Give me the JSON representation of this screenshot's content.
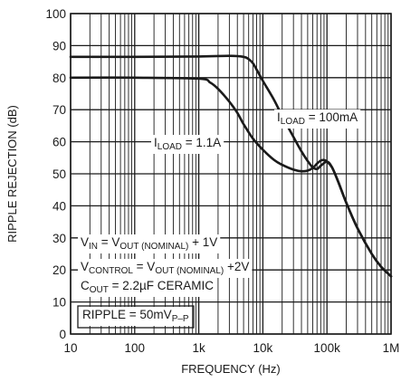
{
  "chart_data": {
    "type": "line",
    "xlabel": "FREQUENCY (Hz)",
    "ylabel": "RIPPLE REJECTION (dB)",
    "xscale": "log",
    "xlim": [
      10,
      1000000
    ],
    "ylim": [
      0,
      100
    ],
    "x_ticks": [
      {
        "value": 10,
        "label": "10"
      },
      {
        "value": 100,
        "label": "100"
      },
      {
        "value": 1000,
        "label": "1k"
      },
      {
        "value": 10000,
        "label": "10k"
      },
      {
        "value": 100000,
        "label": "100k"
      },
      {
        "value": 1000000,
        "label": "1M"
      }
    ],
    "y_ticks": [
      {
        "value": 0,
        "label": "0"
      },
      {
        "value": 10,
        "label": "10"
      },
      {
        "value": 20,
        "label": "20"
      },
      {
        "value": 30,
        "label": "30"
      },
      {
        "value": 40,
        "label": "40"
      },
      {
        "value": 50,
        "label": "50"
      },
      {
        "value": 60,
        "label": "60"
      },
      {
        "value": 70,
        "label": "70"
      },
      {
        "value": 80,
        "label": "80"
      },
      {
        "value": 90,
        "label": "90"
      },
      {
        "value": 100,
        "label": "100"
      }
    ],
    "grid": true,
    "series": [
      {
        "label_main": "I",
        "label_sub": "LOAD",
        "label_rest": " = 100mA",
        "x": [
          10,
          100,
          1000,
          3000,
          5000,
          6000,
          7000,
          8000,
          10000,
          15000,
          20000,
          30000,
          40000,
          50000,
          60000,
          70000,
          80000,
          100000,
          120000,
          150000,
          200000,
          300000,
          500000,
          700000,
          1000000
        ],
        "y": [
          86.5,
          86.5,
          86.6,
          86.8,
          86.5,
          85.8,
          84.5,
          82.5,
          79,
          73,
          68,
          61.5,
          57,
          54,
          52,
          51.5,
          52.5,
          53.8,
          52,
          47.5,
          41,
          33,
          25,
          21,
          18
        ]
      },
      {
        "label_main": "I",
        "label_sub": "LOAD",
        "label_rest": " = 1.1A",
        "x": [
          10,
          100,
          1000,
          1500,
          2000,
          3000,
          4000,
          5000,
          7000,
          10000,
          15000,
          20000,
          30000,
          40000,
          50000,
          60000,
          70000,
          80000,
          90000,
          100000,
          120000,
          150000,
          200000,
          300000,
          500000,
          700000,
          1000000
        ],
        "y": [
          80,
          80,
          79.7,
          78.5,
          76.5,
          72.5,
          69,
          65.5,
          61,
          57.5,
          54.3,
          52.8,
          51.3,
          50.8,
          51,
          51.8,
          53.2,
          54.1,
          54.3,
          53.8,
          52,
          47.5,
          41,
          33,
          25,
          21,
          18
        ]
      }
    ],
    "annotations": [
      {
        "id": "vin",
        "segments": [
          {
            "t": "V",
            "sub": false
          },
          {
            "t": "IN",
            "sub": true
          },
          {
            "t": " = V",
            "sub": false
          },
          {
            "t": "OUT (NOMINAL)",
            "sub": true
          },
          {
            "t": " + 1V",
            "sub": false
          }
        ]
      },
      {
        "id": "vcontrol",
        "segments": [
          {
            "t": "V",
            "sub": false
          },
          {
            "t": "CONTROL",
            "sub": true
          },
          {
            "t": " = V",
            "sub": false
          },
          {
            "t": "OUT (NOMINAL)",
            "sub": true
          },
          {
            "t": " +2V",
            "sub": false
          }
        ]
      },
      {
        "id": "cout",
        "segments": [
          {
            "t": "C",
            "sub": false
          },
          {
            "t": "OUT",
            "sub": true
          },
          {
            "t": " = 2.2µF CERAMIC",
            "sub": false
          }
        ]
      },
      {
        "id": "ripple",
        "segments": [
          {
            "t": "RIPPLE = 50mV",
            "sub": false
          },
          {
            "t": "P–P",
            "sub": true
          }
        ]
      }
    ],
    "colors": {
      "curve": "#1a1a1a",
      "grid": "#1a1a1a",
      "background": "#ffffff"
    }
  }
}
